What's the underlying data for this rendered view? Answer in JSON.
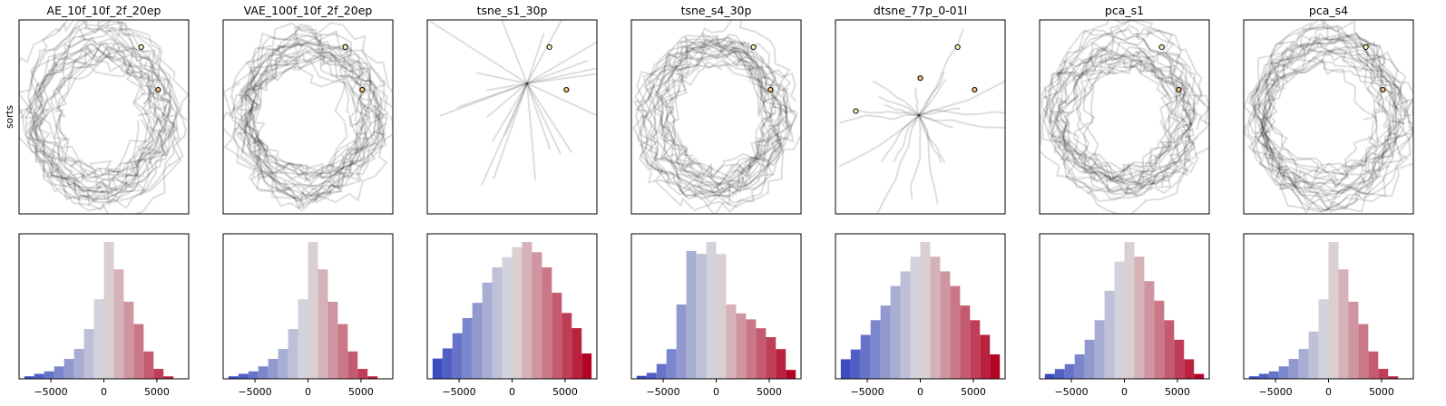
{
  "figure": {
    "ylabel": "sorts"
  },
  "chart_data": [
    {
      "type": "line",
      "title": "AE_10f_10f_2f_20ep",
      "panel": 0
    },
    {
      "type": "line",
      "title": "VAE_100f_10f_2f_20ep",
      "panel": 1
    },
    {
      "type": "line",
      "title": "tsne_s1_30p",
      "panel": 2
    },
    {
      "type": "line",
      "title": "tsne_s4_30p",
      "panel": 3
    },
    {
      "type": "line",
      "title": "dtsne_77p_0-01l",
      "panel": 4
    },
    {
      "type": "line",
      "title": "pca_s1",
      "panel": 5
    },
    {
      "type": "line",
      "title": "pca_s4",
      "panel": 6
    }
  ],
  "histograms": {
    "type": "bar",
    "xlim": [
      -8000,
      8000
    ],
    "xticks": [
      -5000,
      0,
      5000
    ],
    "xtick_labels": [
      "−5000",
      "0",
      "5000"
    ],
    "bin_edges": [
      -7500,
      -6562.5,
      -5625,
      -4687.5,
      -3750,
      -2812.5,
      -1875,
      -937.5,
      0,
      937.5,
      1875,
      2812.5,
      3750,
      4687.5,
      5625,
      6562.5,
      7500
    ],
    "panels": [
      {
        "panel": 0,
        "values": [
          1,
          2,
          3,
          5,
          8,
          12,
          20,
          32,
          55,
          44,
          31,
          22,
          11,
          4,
          1,
          0
        ]
      },
      {
        "panel": 1,
        "values": [
          1,
          2,
          3,
          5,
          8,
          12,
          20,
          32,
          55,
          44,
          31,
          22,
          11,
          4,
          1,
          0
        ]
      },
      {
        "panel": 2,
        "values": [
          4,
          6,
          9,
          12,
          15,
          19,
          22,
          24,
          26,
          27,
          25,
          22,
          17,
          13,
          10,
          5
        ]
      },
      {
        "panel": 3,
        "values": [
          1,
          2,
          5,
          10,
          25,
          43,
          42,
          46,
          42,
          25,
          22,
          20,
          17,
          14,
          10,
          3
        ]
      },
      {
        "panel": 4,
        "values": [
          4,
          6,
          9,
          12,
          15,
          19,
          22,
          25,
          28,
          25,
          22,
          19,
          15,
          12,
          9,
          5
        ]
      },
      {
        "panel": 5,
        "values": [
          1,
          2,
          3,
          5,
          8,
          12,
          18,
          24,
          28,
          25,
          20,
          16,
          12,
          8,
          4,
          1
        ]
      },
      {
        "panel": 6,
        "values": [
          1,
          2,
          3,
          5,
          8,
          12,
          19,
          32,
          55,
          44,
          31,
          22,
          11,
          4,
          1,
          0
        ]
      }
    ]
  },
  "colors": {
    "colormap": "coolwarm",
    "cold": "#3b4cc0",
    "neutral": "#dddddd",
    "hot": "#b40426",
    "trace": "#000000"
  }
}
